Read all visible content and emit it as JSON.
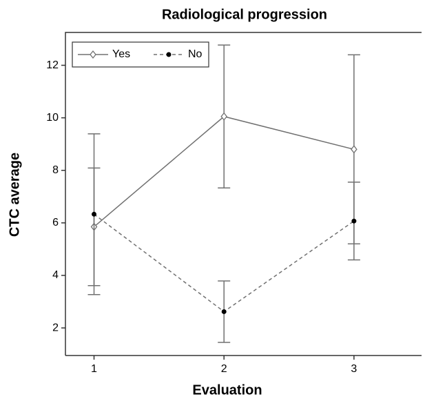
{
  "chart_data": {
    "type": "line",
    "title": "Radiological progression",
    "x_label": "Evaluation",
    "y_label": "CTC average",
    "x": [
      1,
      2,
      3
    ],
    "series": [
      {
        "name": "Yes",
        "color": "#707070",
        "dash": "solid",
        "marker": "diamond-open",
        "values": [
          5.85,
          10.05,
          8.8
        ],
        "errors": [
          2.24,
          2.72,
          3.6
        ]
      },
      {
        "name": "No",
        "color": "#707070",
        "dash": "dashed",
        "marker": "dot",
        "values": [
          6.33,
          2.62,
          6.07
        ],
        "errors": [
          3.06,
          1.17,
          1.48
        ]
      }
    ],
    "xlim": [
      0.78,
      3.52
    ],
    "ylim": [
      0.95,
      13.25
    ],
    "xticks": [
      1,
      2,
      3
    ],
    "yticks": [
      2,
      4,
      6,
      8,
      10,
      12
    ],
    "grid": false,
    "legend": "upper left"
  }
}
